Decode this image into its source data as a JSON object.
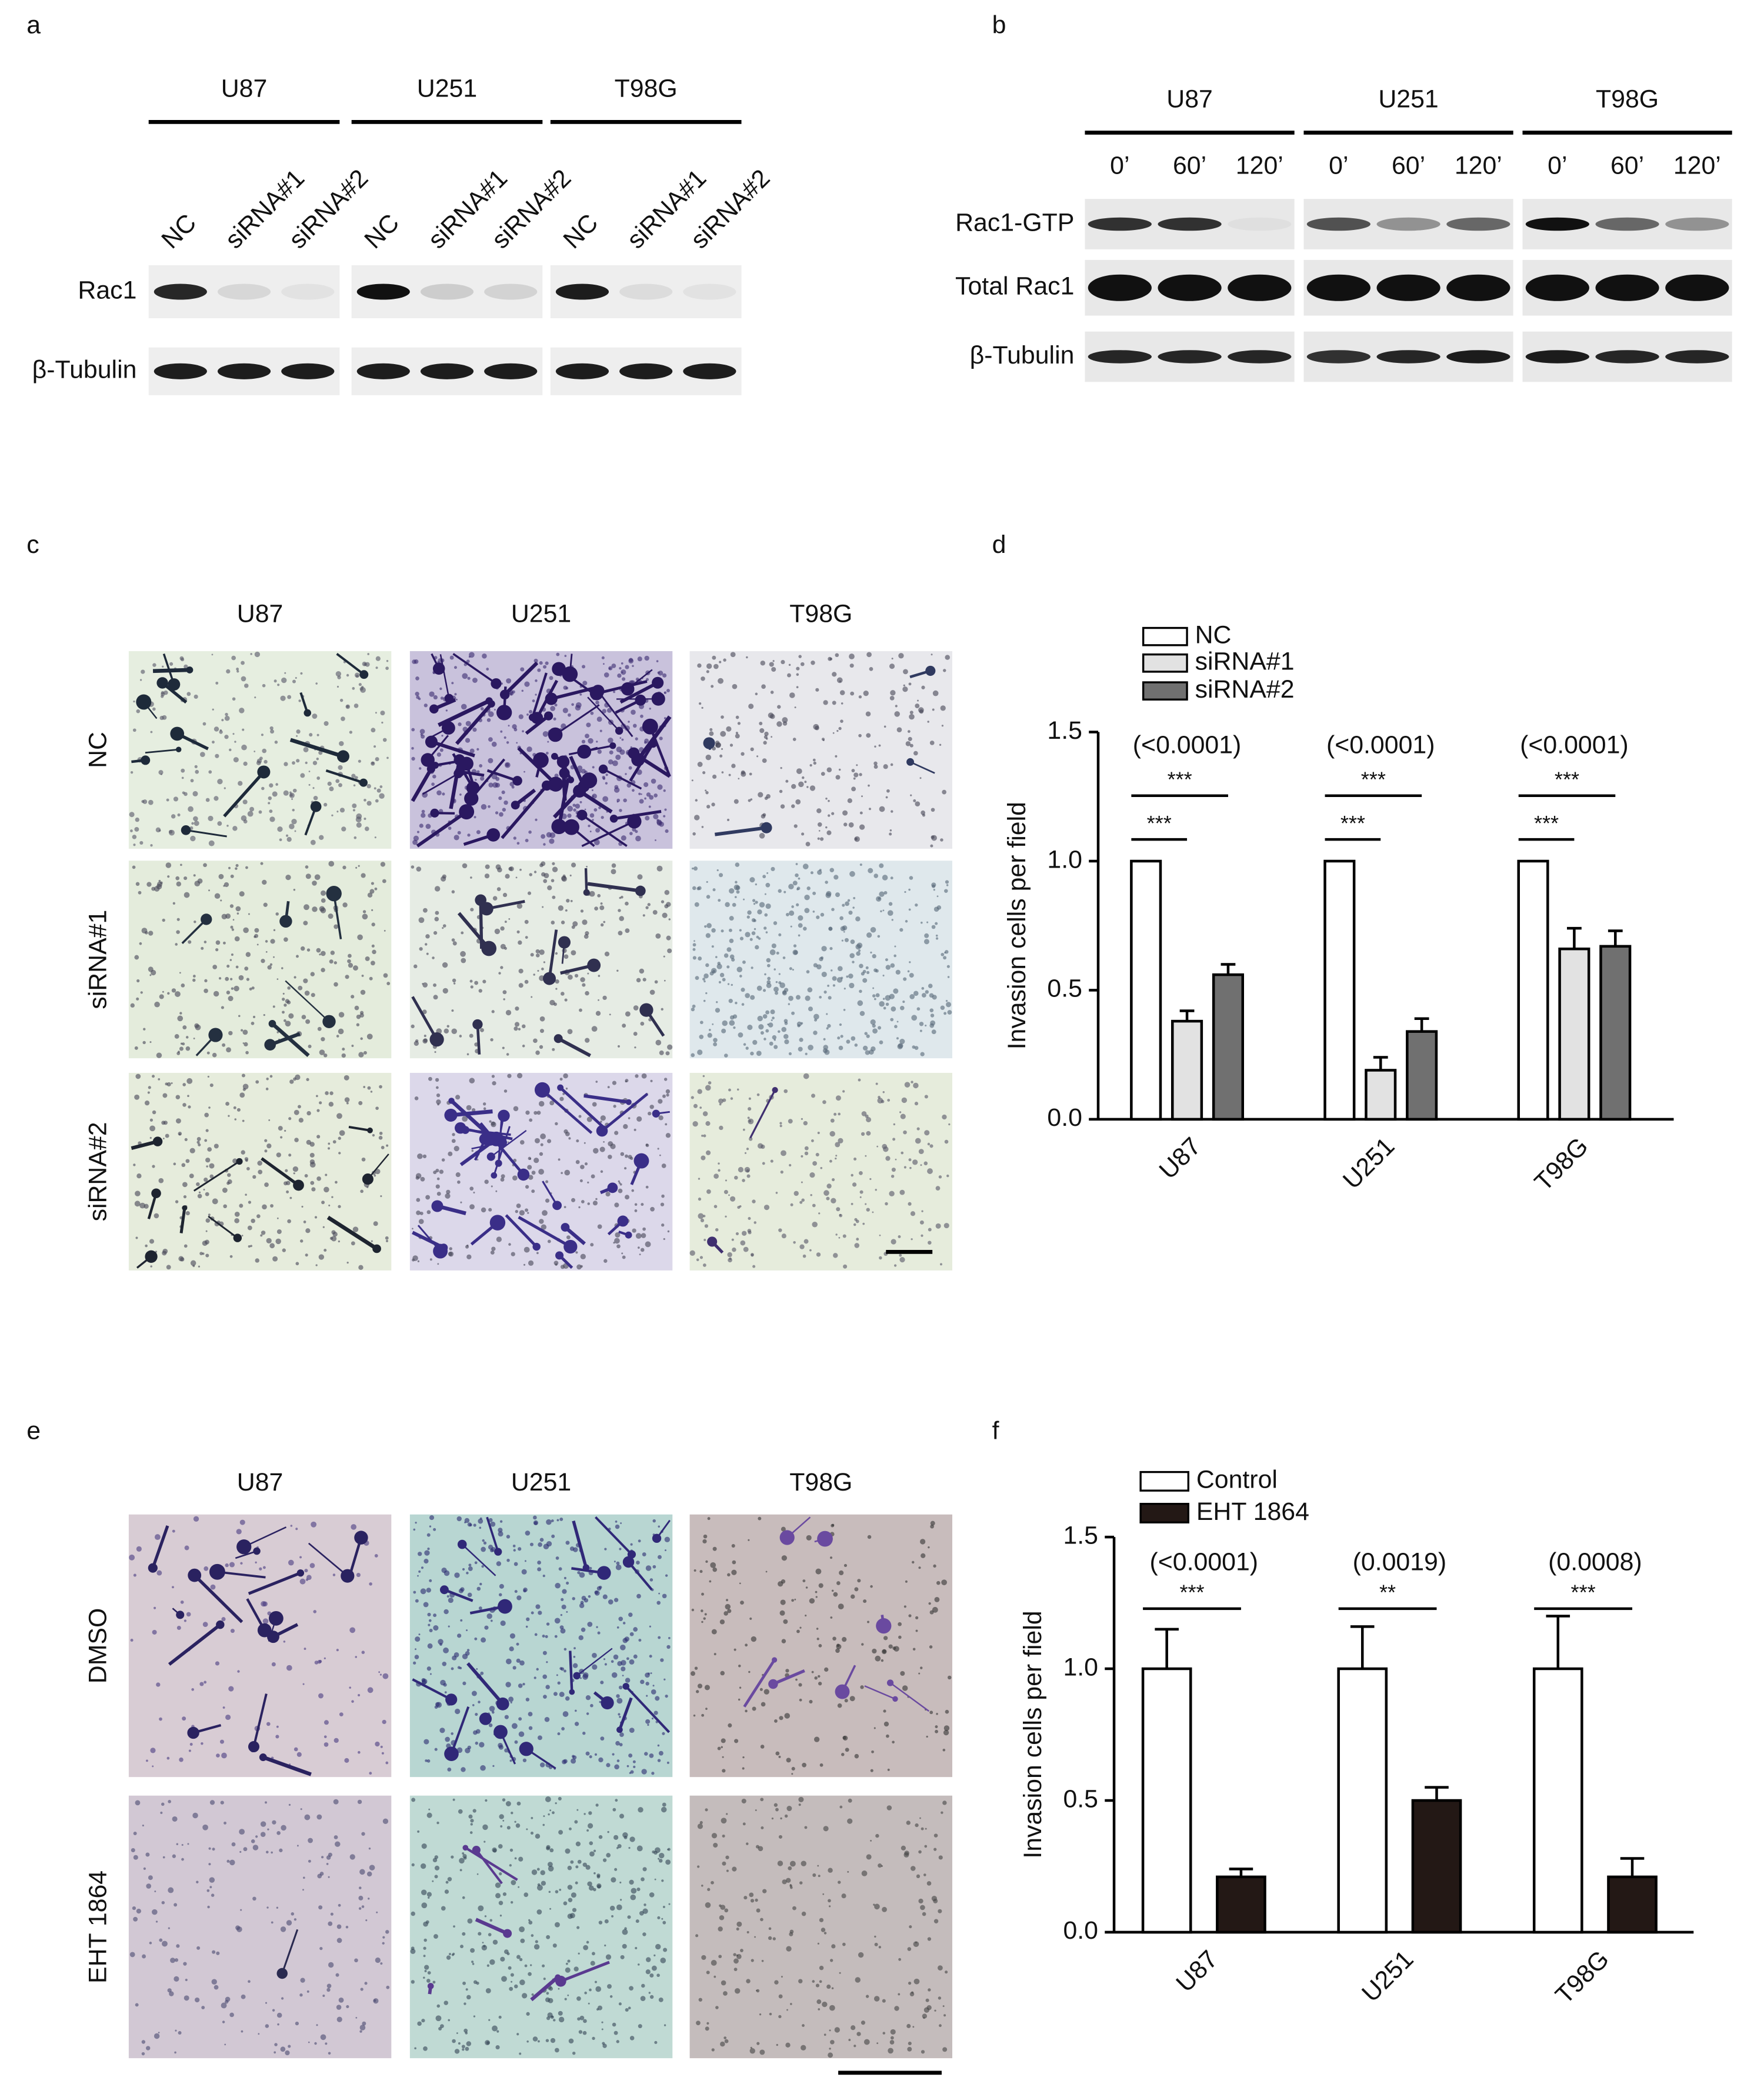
{
  "panels": {
    "a": {
      "label": "a",
      "cell_lines": [
        "U87",
        "U251",
        "T98G"
      ],
      "lanes": [
        "NC",
        "siRNA#1",
        "siRNA#2"
      ],
      "rows": [
        "Rac1",
        "β-Tubulin"
      ]
    },
    "b": {
      "label": "b",
      "cell_lines": [
        "U87",
        "U251",
        "T98G"
      ],
      "times": [
        "0’",
        "60’",
        "120’"
      ],
      "rows": [
        "Rac1-GTP",
        "Total Rac1",
        "β-Tubulin"
      ]
    },
    "c": {
      "label": "c",
      "columns": [
        "U87",
        "U251",
        "T98G"
      ],
      "rows": [
        "NC",
        "siRNA#1",
        "siRNA#2"
      ]
    },
    "e": {
      "label": "e",
      "columns": [
        "U87",
        "U251",
        "T98G"
      ],
      "rows": [
        "DMSO",
        "EHT 1864"
      ]
    }
  },
  "chart_data": [
    {
      "type": "bar",
      "panel_label": "d",
      "ylabel": "Invasion cells per field",
      "categories": [
        "U87",
        "U251",
        "T98G"
      ],
      "ylim": [
        0,
        1.5
      ],
      "yticks": [
        {
          "value": 0,
          "label": "0.0"
        },
        {
          "value": 0.5,
          "label": "0.5"
        },
        {
          "value": 1,
          "label": "1.0"
        },
        {
          "value": 1.5,
          "label": "1.5"
        }
      ],
      "series": [
        {
          "name": "NC",
          "color": "#ffffff",
          "values": [
            1,
            1,
            1
          ],
          "errors": [
            null,
            null,
            null
          ]
        },
        {
          "name": "siRNA#1",
          "color": "#e2e2e2",
          "values": [
            0.38,
            0.19,
            0.66
          ],
          "errors": [
            0.04,
            0.05,
            0.08
          ]
        },
        {
          "name": "siRNA#2",
          "color": "#707070",
          "values": [
            0.56,
            0.34,
            0.67
          ],
          "errors": [
            0.04,
            0.05,
            0.06
          ]
        }
      ],
      "comparisons": [
        {
          "p_value": "(<0.0001)",
          "stars": [
            "***",
            "***"
          ]
        },
        {
          "p_value": "(<0.0001)",
          "stars": [
            "***",
            "***"
          ]
        },
        {
          "p_value": "(<0.0001)",
          "stars": [
            "***",
            "***"
          ]
        }
      ]
    },
    {
      "type": "bar",
      "panel_label": "f",
      "ylabel": "Invasion cells per field",
      "categories": [
        "U87",
        "U251",
        "T98G"
      ],
      "ylim": [
        0,
        1.5
      ],
      "yticks": [
        {
          "value": 0,
          "label": "0.0"
        },
        {
          "value": 0.5,
          "label": "0.5"
        },
        {
          "value": 1,
          "label": "1.0"
        },
        {
          "value": 1.5,
          "label": "1.5"
        }
      ],
      "series": [
        {
          "name": "Control",
          "color": "#ffffff",
          "values": [
            1,
            1,
            1
          ],
          "errors": [
            0.15,
            0.16,
            0.2
          ]
        },
        {
          "name": "EHT 1864",
          "color": "#231815",
          "values": [
            0.21,
            0.5,
            0.21
          ],
          "errors": [
            0.03,
            0.05,
            0.07
          ]
        }
      ],
      "comparisons": [
        {
          "p_value": "(<0.0001)",
          "stars": [
            "***"
          ]
        },
        {
          "p_value": "(0.0019)",
          "stars": [
            "**"
          ]
        },
        {
          "p_value": "(0.0008)",
          "stars": [
            "***"
          ]
        }
      ]
    }
  ]
}
